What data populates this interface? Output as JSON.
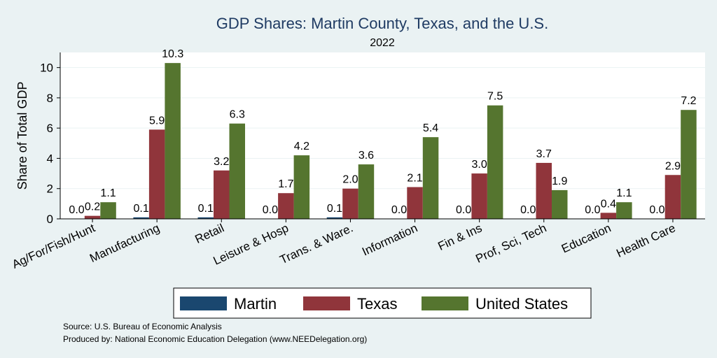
{
  "chart_data": {
    "type": "bar",
    "title": "GDP Shares: Martin County, Texas, and the U.S.",
    "subtitle": "2022",
    "ylabel": "Share of Total GDP",
    "xlabel": "",
    "ylim": [
      0,
      11
    ],
    "yticks": [
      0,
      2,
      4,
      6,
      8,
      10
    ],
    "grid": true,
    "legend_position": "bottom",
    "categories": [
      "Ag/For/Fish/Hunt",
      "Manufacturing",
      "Retail",
      "Leisure & Hosp",
      "Trans. & Ware.",
      "Information",
      "Fin & Ins",
      "Prof, Sci, Tech",
      "Education",
      "Health Care"
    ],
    "series": [
      {
        "name": "Martin",
        "color": "#1a476f",
        "values": [
          0.0,
          0.1,
          0.1,
          0.0,
          0.1,
          0.0,
          0.0,
          0.0,
          0.0,
          0.0
        ],
        "labels": [
          "0.0",
          "0.1",
          "0.1",
          "0.0",
          "0.1",
          "0.0",
          "0.0",
          "0.0",
          "0.0",
          "0.0"
        ]
      },
      {
        "name": "Texas",
        "color": "#90353b",
        "values": [
          0.2,
          5.9,
          3.2,
          1.7,
          2.0,
          2.1,
          3.0,
          3.7,
          0.4,
          2.9
        ],
        "labels": [
          "0.2",
          "5.9",
          "3.2",
          "1.7",
          "2.0",
          "2.1",
          "3.0",
          "3.7",
          "0.4",
          "2.9"
        ]
      },
      {
        "name": "United States",
        "color": "#55752f",
        "values": [
          1.1,
          10.3,
          6.3,
          4.2,
          3.6,
          5.4,
          7.5,
          1.9,
          1.1,
          7.2
        ],
        "labels": [
          "1.1",
          "10.3",
          "6.3",
          "4.2",
          "3.6",
          "5.4",
          "7.5",
          "1.9",
          "1.1",
          "7.2"
        ]
      }
    ],
    "notes": [
      "Source: U.S. Bureau of Economic Analysis",
      "Produced by: National Economic Education Delegation (www.NEEDelegation.org)"
    ]
  }
}
